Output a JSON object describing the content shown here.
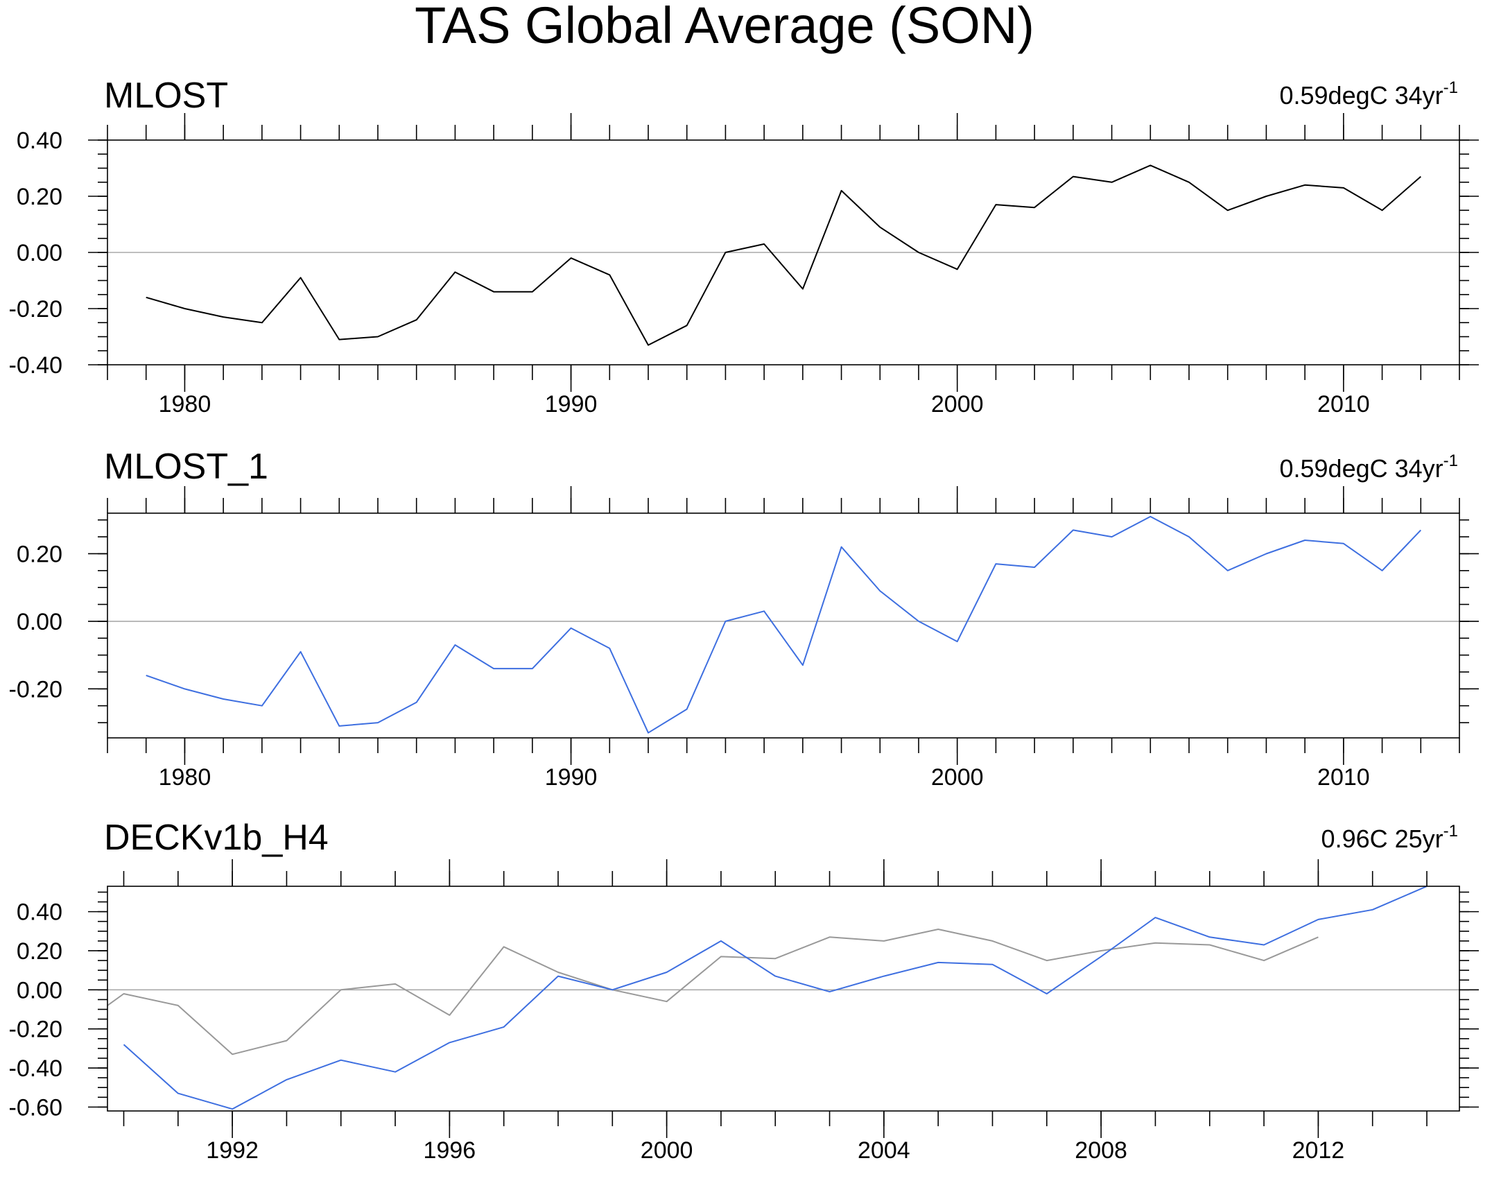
{
  "title": "TAS Global Average (SON)",
  "colors": {
    "blue": "#3e6fe0",
    "gray": "#999999",
    "black": "#000000"
  },
  "chart_data": [
    {
      "type": "line",
      "title": "MLOST",
      "trend_text": "0.59degC 34yr",
      "trend_superscript": "-1",
      "xlim": [
        1978,
        2013
      ],
      "ylim": [
        -0.4,
        0.4
      ],
      "xticks": [
        1980,
        1990,
        2000,
        2010
      ],
      "yticks": [
        -0.4,
        -0.2,
        0.0,
        0.2,
        0.4
      ],
      "ytick_labels": [
        "-0.40",
        "-0.20",
        "0.00",
        "0.20",
        "0.40"
      ],
      "series": [
        {
          "name": "MLOST",
          "color": "#000000",
          "x": [
            1979,
            1980,
            1981,
            1982,
            1983,
            1984,
            1985,
            1986,
            1987,
            1988,
            1989,
            1990,
            1991,
            1992,
            1993,
            1994,
            1995,
            1996,
            1997,
            1998,
            1999,
            2000,
            2001,
            2002,
            2003,
            2004,
            2005,
            2006,
            2007,
            2008,
            2009,
            2010,
            2011,
            2012
          ],
          "values": [
            -0.16,
            -0.2,
            -0.23,
            -0.25,
            -0.09,
            -0.31,
            -0.3,
            -0.24,
            -0.07,
            -0.14,
            -0.14,
            -0.02,
            -0.08,
            -0.33,
            -0.26,
            0.0,
            0.03,
            -0.13,
            0.22,
            0.09,
            0.0,
            -0.06,
            0.17,
            0.16,
            0.27,
            0.25,
            0.31,
            0.25,
            0.15,
            0.2,
            0.24,
            0.23,
            0.15,
            0.27
          ]
        }
      ]
    },
    {
      "type": "line",
      "title": "MLOST_1",
      "trend_text": "0.59degC 34yr",
      "trend_superscript": "-1",
      "xlim": [
        1978,
        2013
      ],
      "ylim": [
        -0.345,
        0.32
      ],
      "xticks": [
        1980,
        1990,
        2000,
        2010
      ],
      "yticks": [
        -0.2,
        0.0,
        0.2
      ],
      "ytick_labels": [
        "-0.20",
        "0.00",
        "0.20"
      ],
      "series": [
        {
          "name": "MLOST_1",
          "color": "#3e6fe0",
          "x": [
            1979,
            1980,
            1981,
            1982,
            1983,
            1984,
            1985,
            1986,
            1987,
            1988,
            1989,
            1990,
            1991,
            1992,
            1993,
            1994,
            1995,
            1996,
            1997,
            1998,
            1999,
            2000,
            2001,
            2002,
            2003,
            2004,
            2005,
            2006,
            2007,
            2008,
            2009,
            2010,
            2011,
            2012
          ],
          "values": [
            -0.16,
            -0.2,
            -0.23,
            -0.25,
            -0.09,
            -0.31,
            -0.3,
            -0.24,
            -0.07,
            -0.14,
            -0.14,
            -0.02,
            -0.08,
            -0.33,
            -0.26,
            0.0,
            0.03,
            -0.13,
            0.22,
            0.09,
            0.0,
            -0.06,
            0.17,
            0.16,
            0.27,
            0.25,
            0.31,
            0.25,
            0.15,
            0.2,
            0.24,
            0.23,
            0.15,
            0.27
          ]
        }
      ]
    },
    {
      "type": "line",
      "title": "DECKv1b_H4",
      "trend_text": "0.96C 25yr",
      "trend_superscript": "-1",
      "xlim": [
        1989.7,
        2014.6
      ],
      "ylim": [
        -0.62,
        0.53
      ],
      "xticks": [
        1992,
        1996,
        2000,
        2004,
        2008,
        2012
      ],
      "yticks": [
        -0.6,
        -0.4,
        -0.2,
        0.0,
        0.2,
        0.4
      ],
      "ytick_labels": [
        "-0.60",
        "-0.40",
        "-0.20",
        "0.00",
        "0.20",
        "0.40"
      ],
      "series": [
        {
          "name": "MLOST",
          "color": "#999999",
          "x": [
            1989.7,
            1990,
            1991,
            1992,
            1993,
            1994,
            1995,
            1996,
            1997,
            1998,
            1999,
            2000,
            2001,
            2002,
            2003,
            2004,
            2005,
            2006,
            2007,
            2008,
            2009,
            2010,
            2011,
            2012
          ],
          "values": [
            -0.08,
            -0.02,
            -0.08,
            -0.33,
            -0.26,
            0.0,
            0.03,
            -0.13,
            0.22,
            0.09,
            0.0,
            -0.06,
            0.17,
            0.16,
            0.27,
            0.25,
            0.31,
            0.25,
            0.15,
            0.2,
            0.24,
            0.23,
            0.15,
            0.27
          ]
        },
        {
          "name": "DECKv1b_H4",
          "color": "#3e6fe0",
          "x": [
            1990,
            1991,
            1992,
            1993,
            1994,
            1995,
            1996,
            1997,
            1998,
            1999,
            2000,
            2001,
            2002,
            2003,
            2004,
            2005,
            2006,
            2007,
            2008,
            2009,
            2010,
            2011,
            2012,
            2013,
            2014
          ],
          "values": [
            -0.28,
            -0.53,
            -0.61,
            -0.46,
            -0.36,
            -0.42,
            -0.27,
            -0.19,
            0.07,
            0.0,
            0.09,
            0.25,
            0.07,
            -0.01,
            0.07,
            0.14,
            0.13,
            -0.02,
            0.17,
            0.37,
            0.27,
            0.23,
            0.36,
            0.41,
            0.53
          ]
        }
      ]
    }
  ]
}
